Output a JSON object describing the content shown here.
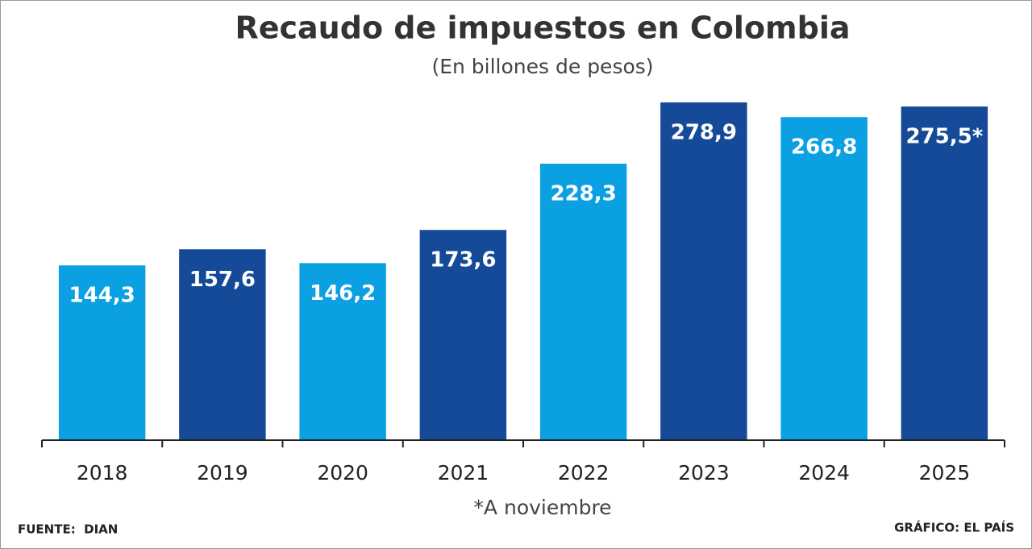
{
  "chart_data": {
    "type": "bar",
    "title": "Recaudo de impuestos en Colombia",
    "subtitle": "(En billones de pesos)",
    "categories": [
      "2018",
      "2019",
      "2020",
      "2021",
      "2022",
      "2023",
      "2024",
      "2025"
    ],
    "values": [
      144.3,
      157.6,
      146.2,
      173.6,
      228.3,
      278.9,
      266.8,
      275.5
    ],
    "value_labels": [
      "144,3",
      "157,6",
      "146,2",
      "173,6",
      "228,3",
      "278,9",
      "266,8",
      "275,5*"
    ],
    "colors": [
      "#0aa0e2",
      "#154a99",
      "#0aa0e2",
      "#154a99",
      "#0aa0e2",
      "#154a99",
      "#0aa0e2",
      "#154a99"
    ],
    "ylim": [
      0,
      280
    ],
    "note": "*A noviembre",
    "source": "FUENTE:  DIAN",
    "credit": "GRÁFICO: EL PAÍS"
  }
}
